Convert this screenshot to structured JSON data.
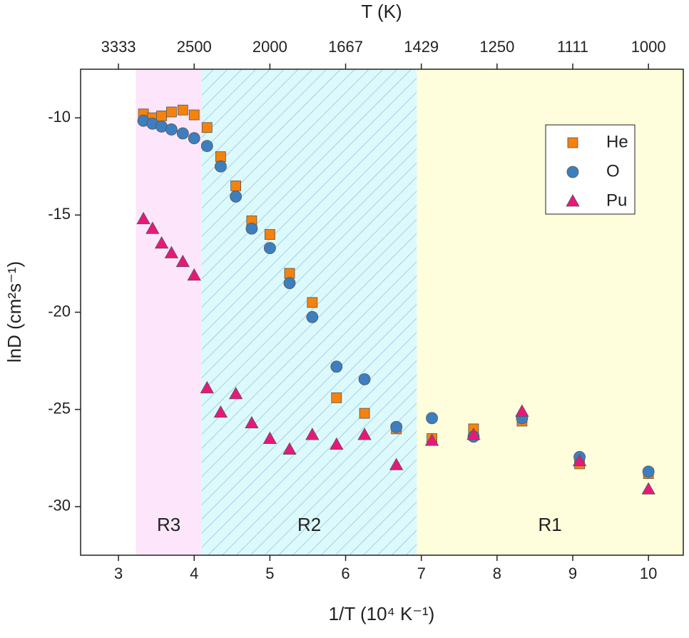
{
  "chart_data": {
    "type": "scatter",
    "x_label": "1/T (10⁴ K⁻¹)",
    "y_label": "lnD (cm²s⁻¹)",
    "x2_label": "T (K)",
    "xlim": [
      2.5,
      10.46
    ],
    "ylim": [
      -32.5,
      -7.5
    ],
    "xticks": [
      3,
      4,
      5,
      6,
      7,
      8,
      9,
      10
    ],
    "yticks": [
      -30,
      -25,
      -20,
      -15,
      -10
    ],
    "x2ticks": [
      {
        "value": 3,
        "label": "3333"
      },
      {
        "value": 4,
        "label": "2500"
      },
      {
        "value": 5,
        "label": "2000"
      },
      {
        "value": 6,
        "label": "1667"
      },
      {
        "value": 7,
        "label": "1429"
      },
      {
        "value": 8,
        "label": "1250"
      },
      {
        "value": 9,
        "label": "1111"
      },
      {
        "value": 10,
        "label": "1000"
      }
    ],
    "regions": [
      {
        "label": "R3",
        "from": 3.23,
        "to": 4.1,
        "color": "#fde6fb",
        "hatch": false
      },
      {
        "label": "R2",
        "from": 4.1,
        "to": 6.94,
        "color": "#dcfafb",
        "hatch": true
      },
      {
        "label": "R1",
        "from": 6.94,
        "to": 10.46,
        "color": "#fefddc",
        "hatch": false
      }
    ],
    "legend": "upper right",
    "x": [
      3.33,
      3.45,
      3.57,
      3.7,
      3.85,
      4.0,
      4.17,
      4.35,
      4.55,
      4.76,
      5.0,
      5.26,
      5.56,
      5.88,
      6.25,
      6.67,
      7.14,
      7.69,
      8.33,
      9.09,
      10.0
    ],
    "series": [
      {
        "name": "He",
        "color": "#f5820d",
        "marker": "square",
        "values": [
          -9.8,
          -10.0,
          -9.9,
          -9.7,
          -9.6,
          -9.85,
          -10.5,
          -12.0,
          -13.5,
          -15.3,
          -16.0,
          -18.0,
          -19.5,
          -24.4,
          -25.2,
          -26.0,
          -26.5,
          -26.0,
          -25.6,
          -27.8,
          -28.3
        ]
      },
      {
        "name": "O",
        "color": "#3d7ebf",
        "marker": "circle",
        "values": [
          -10.15,
          -10.3,
          -10.45,
          -10.6,
          -10.8,
          -11.05,
          -11.45,
          -12.5,
          -14.05,
          -15.7,
          -16.7,
          -18.5,
          -20.25,
          -22.8,
          -23.45,
          -25.9,
          -25.45,
          -26.4,
          -25.45,
          -27.45,
          -28.2
        ]
      },
      {
        "name": "Pu",
        "color": "#e8187a",
        "marker": "triangle",
        "values": [
          -15.2,
          -15.7,
          -16.45,
          -16.95,
          -17.4,
          -18.1,
          -23.9,
          -25.15,
          -24.2,
          -25.7,
          -26.5,
          -27.05,
          -26.3,
          -26.8,
          -26.3,
          -27.85,
          -26.6,
          -26.3,
          -25.1,
          -27.65,
          -29.1
        ]
      }
    ]
  }
}
